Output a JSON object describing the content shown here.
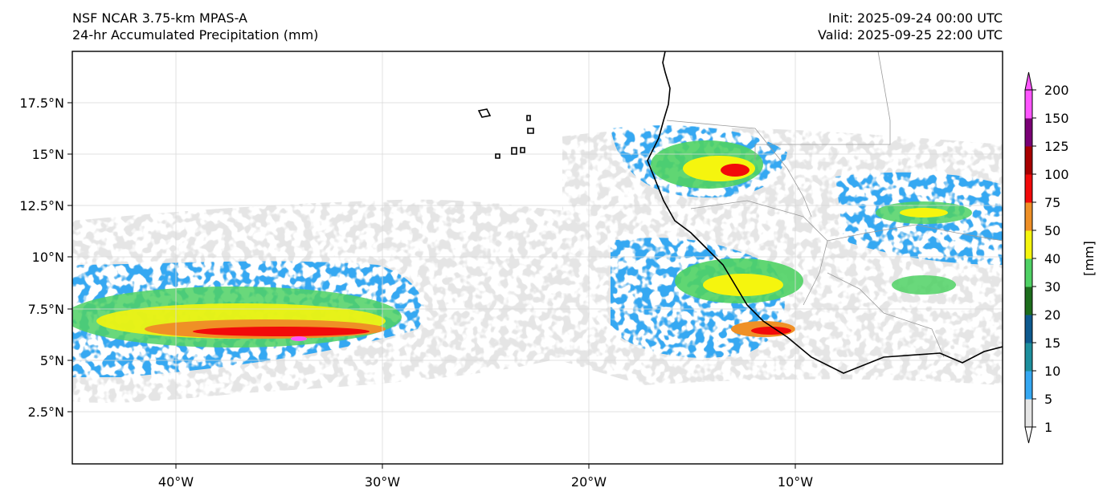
{
  "header": {
    "model": "NSF NCAR 3.75-km MPAS-A",
    "product": "24-hr Accumulated Precipitation (mm)",
    "init": "Init: 2025-09-24 00:00 UTC",
    "valid": "Valid: 2025-09-25 22:00 UTC"
  },
  "axes": {
    "lat_ticks": [
      "17.5°N",
      "15°N",
      "12.5°N",
      "10°N",
      "7.5°N",
      "5°N",
      "2.5°N"
    ],
    "lon_ticks": [
      "40°W",
      "30°W",
      "20°W",
      "10°W"
    ]
  },
  "colorbar": {
    "unit_label": "[mm]",
    "levels": [
      "1",
      "5",
      "10",
      "15",
      "20",
      "30",
      "40",
      "50",
      "75",
      "100",
      "125",
      "150",
      "200"
    ],
    "colors": [
      "#e5e5e5",
      "#35a8f2",
      "#1d8f9e",
      "#0e5a8e",
      "#1d6d1d",
      "#4fd164",
      "#f5f50e",
      "#ef9026",
      "#f20a0a",
      "#a80000",
      "#7a0075",
      "#ff55ff"
    ]
  },
  "colors": {
    "coast": "#000000",
    "border": "#9a9a9a",
    "grid": "#d9d9d9"
  }
}
